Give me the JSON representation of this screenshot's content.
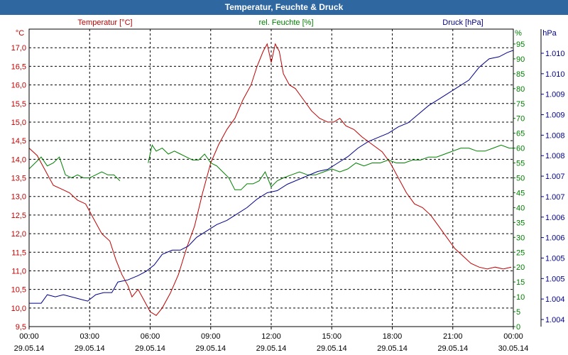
{
  "title": "Temperatur, Feuchte & Druck",
  "colors": {
    "temperature": "#c00000",
    "humidity": "#008000",
    "pressure": "#00008b",
    "title_bg": "#2f67a1",
    "grid": "#000000"
  },
  "chart_data": {
    "type": "line",
    "x_unit": "hours since 29.05.14 00:00",
    "xlim": [
      0,
      24
    ],
    "x_ticks": [
      {
        "time": "00:00",
        "date": "29.05.14"
      },
      {
        "time": "03:00",
        "date": "29.05.14"
      },
      {
        "time": "06:00",
        "date": "29.05.14"
      },
      {
        "time": "09:00",
        "date": "29.05.14"
      },
      {
        "time": "12:00",
        "date": "29.05.14"
      },
      {
        "time": "15:00",
        "date": "29.05.14"
      },
      {
        "time": "18:00",
        "date": "29.05.14"
      },
      {
        "time": "21:00",
        "date": "29.05.14"
      },
      {
        "time": "00:00",
        "date": "30.05.14"
      }
    ],
    "axes": {
      "temperature": {
        "unit": "°C",
        "ylim": [
          9.5,
          17.5
        ],
        "ticks": [
          "9,5",
          "10,0",
          "10,5",
          "11,0",
          "11,5",
          "12,0",
          "12,5",
          "13,0",
          "13,5",
          "14,0",
          "14,5",
          "15,0",
          "15,5",
          "16,0",
          "16,5",
          "17,0"
        ]
      },
      "humidity": {
        "unit": "%",
        "ylim": [
          0,
          100
        ],
        "ticks": [
          "0",
          "5",
          "10",
          "15",
          "20",
          "25",
          "30",
          "35",
          "40",
          "45",
          "50",
          "55",
          "60",
          "65",
          "70",
          "75",
          "80",
          "85",
          "90",
          "95"
        ]
      },
      "pressure": {
        "unit": "hPa",
        "ylim": [
          1003.5,
          1010.5
        ],
        "ticks": [
          "1.004",
          "1.004",
          "1.005",
          "1.005",
          "1.006",
          "1.006",
          "1.007",
          "1.007",
          "1.008",
          "1.008",
          "1.009",
          "1.009",
          "1.010",
          "1.010"
        ]
      }
    },
    "series": [
      {
        "name": "Temperatur [°C]",
        "axis": "temperature",
        "segments": [
          [
            [
              0,
              14.3
            ],
            [
              0.4,
              14.1
            ],
            [
              0.8,
              13.7
            ],
            [
              1.2,
              13.3
            ],
            [
              1.6,
              13.2
            ],
            [
              2.0,
              13.1
            ],
            [
              2.4,
              12.9
            ],
            [
              2.8,
              12.8
            ],
            [
              3.2,
              12.4
            ],
            [
              3.6,
              12.0
            ],
            [
              4.0,
              11.8
            ],
            [
              4.3,
              11.3
            ],
            [
              4.6,
              10.9
            ],
            [
              4.9,
              10.6
            ],
            [
              5.1,
              10.3
            ],
            [
              5.4,
              10.5
            ],
            [
              5.7,
              10.2
            ],
            [
              6.0,
              9.9
            ],
            [
              6.3,
              9.8
            ],
            [
              6.6,
              10.0
            ],
            [
              7.0,
              10.4
            ],
            [
              7.4,
              10.9
            ],
            [
              7.8,
              11.6
            ],
            [
              8.2,
              12.2
            ],
            [
              8.6,
              13.1
            ],
            [
              9.0,
              13.9
            ],
            [
              9.4,
              14.4
            ],
            [
              9.8,
              14.8
            ],
            [
              10.2,
              15.1
            ],
            [
              10.6,
              15.6
            ],
            [
              11.0,
              16.0
            ],
            [
              11.3,
              16.5
            ],
            [
              11.6,
              16.9
            ],
            [
              11.8,
              17.1
            ],
            [
              12.0,
              16.6
            ],
            [
              12.2,
              17.1
            ],
            [
              12.4,
              16.9
            ],
            [
              12.6,
              16.3
            ],
            [
              12.9,
              16.0
            ],
            [
              13.2,
              15.9
            ],
            [
              13.6,
              15.6
            ],
            [
              14.0,
              15.3
            ],
            [
              14.4,
              15.1
            ],
            [
              14.8,
              15.0
            ],
            [
              15.1,
              15.0
            ],
            [
              15.4,
              15.1
            ],
            [
              15.7,
              14.9
            ],
            [
              16.1,
              14.8
            ],
            [
              16.5,
              14.6
            ],
            [
              17.0,
              14.4
            ],
            [
              17.5,
              14.2
            ],
            [
              17.9,
              13.9
            ],
            [
              18.3,
              13.5
            ],
            [
              18.7,
              13.1
            ],
            [
              19.1,
              12.8
            ],
            [
              19.5,
              12.7
            ],
            [
              19.9,
              12.5
            ],
            [
              20.3,
              12.2
            ],
            [
              20.7,
              11.9
            ],
            [
              21.1,
              11.6
            ],
            [
              21.5,
              11.4
            ],
            [
              21.9,
              11.2
            ],
            [
              22.3,
              11.1
            ],
            [
              22.7,
              11.05
            ],
            [
              23.1,
              11.1
            ],
            [
              23.5,
              11.05
            ],
            [
              23.9,
              11.1
            ]
          ]
        ]
      },
      {
        "name": "rel. Feuchte [%]",
        "axis": "humidity",
        "segments": [
          [
            [
              0,
              53
            ],
            [
              0.3,
              55
            ],
            [
              0.6,
              57
            ],
            [
              0.9,
              54
            ],
            [
              1.2,
              55
            ],
            [
              1.5,
              57
            ],
            [
              1.8,
              51
            ],
            [
              2.1,
              50
            ],
            [
              2.4,
              51
            ],
            [
              2.7,
              50
            ],
            [
              3.0,
              50
            ],
            [
              3.3,
              51
            ],
            [
              3.6,
              52
            ],
            [
              3.9,
              51
            ],
            [
              4.2,
              51
            ],
            [
              4.5,
              49
            ]
          ],
          [
            [
              5.9,
              55
            ],
            [
              6.1,
              61
            ],
            [
              6.3,
              59
            ],
            [
              6.6,
              60
            ],
            [
              6.9,
              58
            ],
            [
              7.2,
              59
            ],
            [
              7.5,
              58
            ],
            [
              7.8,
              57
            ],
            [
              8.1,
              56
            ],
            [
              8.4,
              56
            ],
            [
              8.7,
              58
            ],
            [
              9.0,
              55
            ],
            [
              9.3,
              54
            ],
            [
              9.6,
              52
            ],
            [
              9.9,
              50
            ],
            [
              10.2,
              46
            ],
            [
              10.5,
              46
            ],
            [
              10.8,
              48
            ],
            [
              11.1,
              48
            ],
            [
              11.4,
              49
            ],
            [
              11.7,
              52
            ],
            [
              12.0,
              47
            ],
            [
              12.3,
              49
            ],
            [
              12.6,
              50
            ],
            [
              13.0,
              51
            ],
            [
              13.4,
              52
            ],
            [
              13.8,
              51
            ],
            [
              14.2,
              51
            ],
            [
              14.6,
              52
            ],
            [
              15.0,
              53
            ],
            [
              15.4,
              52
            ],
            [
              15.8,
              53
            ],
            [
              16.2,
              55
            ],
            [
              16.6,
              54
            ],
            [
              17.0,
              55
            ],
            [
              17.4,
              55
            ],
            [
              17.8,
              56
            ],
            [
              18.2,
              55
            ],
            [
              18.6,
              55
            ],
            [
              19.0,
              56
            ],
            [
              19.4,
              56
            ],
            [
              19.8,
              57
            ],
            [
              20.2,
              57
            ],
            [
              20.6,
              58
            ],
            [
              21.0,
              59
            ],
            [
              21.4,
              60
            ],
            [
              21.8,
              60
            ],
            [
              22.2,
              59
            ],
            [
              22.6,
              59
            ],
            [
              23.0,
              60
            ],
            [
              23.4,
              61
            ],
            [
              23.8,
              60
            ],
            [
              24.0,
              60
            ]
          ]
        ]
      },
      {
        "name": "Druck [hPa]",
        "axis": "pressure",
        "segments": [
          [
            [
              0,
              1004.05
            ],
            [
              0.6,
              1004.05
            ],
            [
              0.9,
              1004.25
            ],
            [
              1.3,
              1004.2
            ],
            [
              1.7,
              1004.25
            ],
            [
              2.1,
              1004.2
            ],
            [
              2.5,
              1004.15
            ],
            [
              2.9,
              1004.1
            ],
            [
              3.3,
              1004.25
            ],
            [
              3.7,
              1004.3
            ],
            [
              4.1,
              1004.3
            ],
            [
              4.4,
              1004.55
            ],
            [
              4.9,
              1004.6
            ],
            [
              5.4,
              1004.7
            ],
            [
              5.8,
              1004.8
            ],
            [
              6.2,
              1004.95
            ],
            [
              6.6,
              1005.2
            ],
            [
              7.1,
              1005.3
            ],
            [
              7.5,
              1005.3
            ],
            [
              7.9,
              1005.4
            ],
            [
              8.3,
              1005.6
            ],
            [
              8.8,
              1005.75
            ],
            [
              9.3,
              1005.9
            ],
            [
              9.8,
              1006.0
            ],
            [
              10.3,
              1006.15
            ],
            [
              10.8,
              1006.3
            ],
            [
              11.3,
              1006.5
            ],
            [
              11.8,
              1006.65
            ],
            [
              12.3,
              1006.7
            ],
            [
              12.8,
              1006.85
            ],
            [
              13.3,
              1006.95
            ],
            [
              13.8,
              1007.05
            ],
            [
              14.3,
              1007.15
            ],
            [
              14.8,
              1007.2
            ],
            [
              15.3,
              1007.35
            ],
            [
              15.8,
              1007.5
            ],
            [
              16.3,
              1007.7
            ],
            [
              16.8,
              1007.85
            ],
            [
              17.3,
              1007.95
            ],
            [
              17.8,
              1008.05
            ],
            [
              18.3,
              1008.2
            ],
            [
              18.8,
              1008.3
            ],
            [
              19.3,
              1008.5
            ],
            [
              19.8,
              1008.7
            ],
            [
              20.3,
              1008.85
            ],
            [
              20.8,
              1009.0
            ],
            [
              21.3,
              1009.15
            ],
            [
              21.8,
              1009.3
            ],
            [
              22.3,
              1009.6
            ],
            [
              22.8,
              1009.8
            ],
            [
              23.3,
              1009.85
            ],
            [
              23.7,
              1009.95
            ],
            [
              24.0,
              1010.0
            ]
          ]
        ]
      }
    ]
  }
}
